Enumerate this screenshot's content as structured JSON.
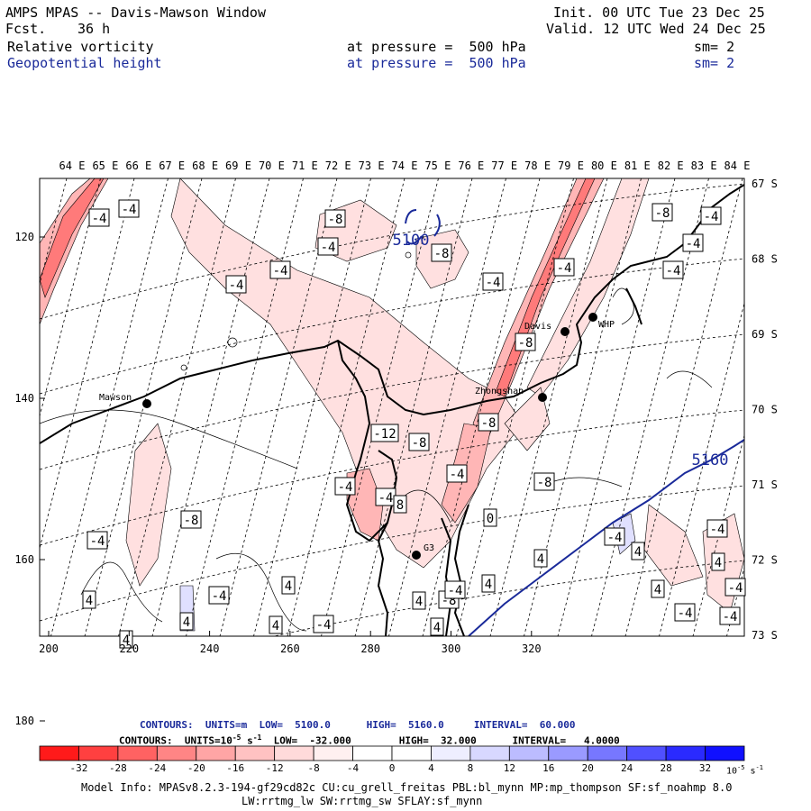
{
  "header": {
    "title": "AMPS MPAS -- Davis-Mawson Window",
    "fcst_label": "Fcst.",
    "fcst_value": "36 h",
    "init": "Init. 00 UTC Tue 23 Dec 25",
    "valid": "Valid. 12 UTC Wed 24 Dec 25",
    "fields": [
      {
        "name": "Relative vorticity",
        "level": "at pressure =  500 hPa",
        "sm": "sm= 2",
        "color": "#000000"
      },
      {
        "name": "Geopotential height",
        "level": "at pressure =  500 hPa",
        "sm": "sm= 2",
        "color": "#1a2a9a"
      }
    ]
  },
  "map": {
    "top_lon_labels": [
      "64 E",
      "65 E",
      "66 E",
      "67 E",
      "68 E",
      "69 E",
      "70 E",
      "71 E",
      "72 E",
      "73 E",
      "74 E",
      "75 E",
      "76 E",
      "77 E",
      "78 E",
      "79 E",
      "80 E",
      "81 E",
      "82 E",
      "83 E",
      "84 E"
    ],
    "right_lat_labels": [
      "67 S",
      "68 S",
      "69 S",
      "70 S",
      "71 S",
      "72 S",
      "73 S"
    ],
    "left_y_labels": [
      "120",
      "140",
      "160",
      "180"
    ],
    "bottom_x_labels": [
      "200",
      "220",
      "240",
      "260",
      "280",
      "300",
      "320"
    ],
    "stations": [
      {
        "name": "Mawson"
      },
      {
        "name": "Davis"
      },
      {
        "name": "WHP"
      },
      {
        "name": "Zhongshan"
      },
      {
        "name": "G3"
      }
    ],
    "height_labels": [
      "5100",
      "5160"
    ],
    "vorticity_labels": [
      "-4",
      "-4",
      "-8",
      "-4",
      "-8",
      "-4",
      "-4",
      "-4",
      "-4",
      "-8",
      "-4",
      "-4",
      "-4",
      "-8",
      "-8",
      "-12",
      "-8",
      "-4",
      "-4",
      "-4",
      "-8",
      "-4",
      "-8",
      "-4",
      "4",
      "4",
      "-4",
      "4",
      "4",
      "-8",
      "4",
      "4",
      "-4",
      "4",
      "-4",
      "-4",
      "4",
      "-4",
      "0",
      "-4",
      "4",
      "8",
      "4",
      "4",
      "-4",
      "4"
    ]
  },
  "footer": {
    "line1": "CONTOURS:  UNITS=m  LOW=  5100.0      HIGH=  5160.0     INTERVAL=  60.000",
    "line2_a": "CONTOURS:  UNITS=10",
    "line2_exp": "-5",
    "line2_b": " s",
    "line2_exp2": "-1",
    "line2_c": "  LOW=  -32.000        HIGH=  32.000      INTERVAL=   4.0000",
    "colorbar_labels": [
      "-32",
      "-28",
      "-24",
      "-20",
      "-16",
      "-12",
      "-8",
      "-4",
      "0",
      "4",
      "8",
      "12",
      "16",
      "20",
      "24",
      "28",
      "32"
    ],
    "colorbar_units": "10",
    "colorbar_units_exp": "-5",
    "colorbar_units_s": "s",
    "colorbar_units_exp2": "-1",
    "colorbar_colors": [
      "#ff1a1a",
      "#ff4040",
      "#ff6262",
      "#ff8585",
      "#ffa5a5",
      "#ffc2c2",
      "#ffdada",
      "#fff0f0",
      "#ffffff",
      "#ffffff",
      "#eeeeff",
      "#d8d8ff",
      "#bcbcff",
      "#9a9aff",
      "#7777ff",
      "#5050ff",
      "#2a2aff",
      "#1010ff"
    ],
    "model_info_1": "Model Info: MPASv8.2.3-194-gf29cd82c CU:cu_grell_freitas PBL:bl_mynn MP:mp_thompson SF:sf_noahmp 8.0",
    "model_info_2": "LW:rrtmg_lw SW:rrtmg_sw SFLAY:sf_mynn"
  }
}
